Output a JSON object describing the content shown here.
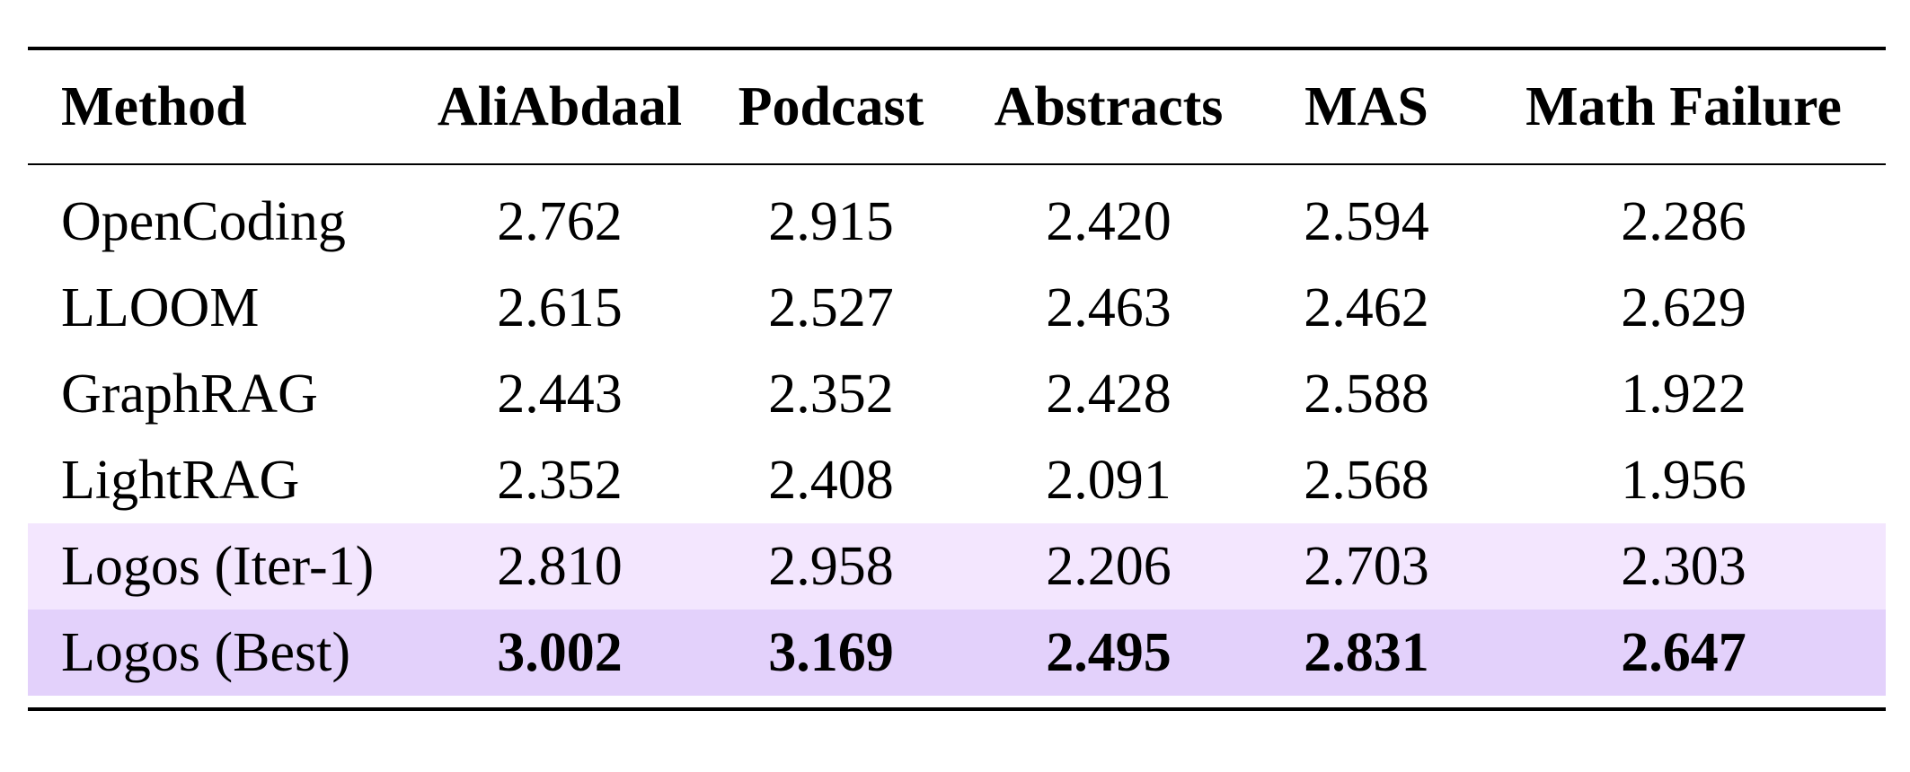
{
  "table": {
    "headers": [
      "Method",
      "AliAbdaal",
      "Podcast",
      "Abstracts",
      "MAS",
      "Math Failure"
    ],
    "rows": [
      {
        "method": "OpenCoding",
        "values": [
          "2.762",
          "2.915",
          "2.420",
          "2.594",
          "2.286"
        ]
      },
      {
        "method": "LLOOM",
        "values": [
          "2.615",
          "2.527",
          "2.463",
          "2.462",
          "2.629"
        ]
      },
      {
        "method": "GraphRAG",
        "values": [
          "2.443",
          "2.352",
          "2.428",
          "2.588",
          "1.922"
        ]
      },
      {
        "method": "LightRAG",
        "values": [
          "2.352",
          "2.408",
          "2.091",
          "2.568",
          "1.956"
        ]
      },
      {
        "method": "Logos (Iter-1)",
        "values": [
          "2.810",
          "2.958",
          "2.206",
          "2.703",
          "2.303"
        ],
        "highlight": "#f3e6fe"
      },
      {
        "method": "Logos (Best)",
        "values": [
          "3.002",
          "3.169",
          "2.495",
          "2.831",
          "2.647"
        ],
        "highlight": "#e3d1fb",
        "bold": true
      }
    ]
  }
}
